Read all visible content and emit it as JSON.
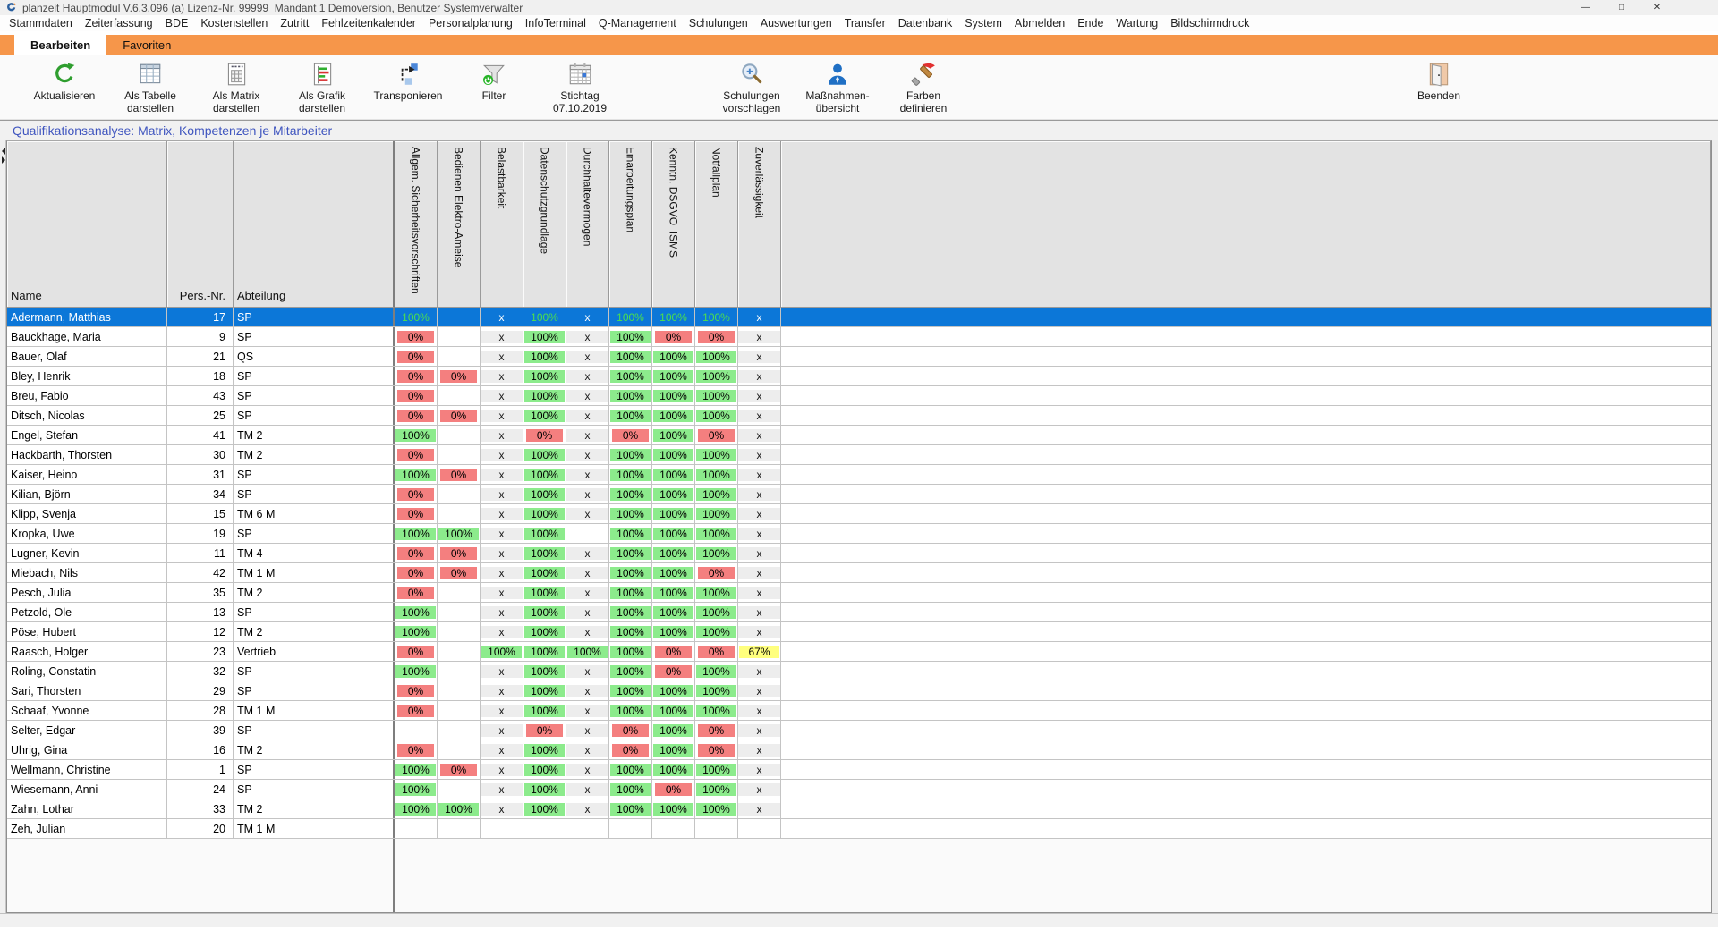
{
  "window": {
    "title": "planzeit Hauptmodul V.6.3.096 (a) Lizenz-Nr. 99999  Mandant 1 Demoversion, Benutzer Systemverwalter",
    "controls": [
      {
        "name": "minimize",
        "glyph": "—"
      },
      {
        "name": "maximize",
        "glyph": "□"
      },
      {
        "name": "close",
        "glyph": "✕"
      }
    ]
  },
  "menu": {
    "items": [
      "Stammdaten",
      "Zeiterfassung",
      "BDE",
      "Kostenstellen",
      "Zutritt",
      "Fehlzeitenkalender",
      "Personalplanung",
      "InfoTerminal",
      "Q-Management",
      "Schulungen",
      "Auswertungen",
      "Transfer",
      "Datenbank",
      "System",
      "Abmelden",
      "Ende",
      "Wartung",
      "Bildschirmdruck"
    ]
  },
  "tabs": [
    {
      "label": "Bearbeiten",
      "active": true
    },
    {
      "label": "Favoriten",
      "active": false
    }
  ],
  "toolbar": {
    "items": [
      {
        "name": "refresh",
        "icon": "refresh-icon",
        "lines": [
          "Aktualisieren"
        ]
      },
      {
        "name": "as-table",
        "icon": "table-icon",
        "lines": [
          "Als Tabelle",
          "darstellen"
        ]
      },
      {
        "name": "as-matrix",
        "icon": "matrix-icon",
        "lines": [
          "Als Matrix",
          "darstellen"
        ]
      },
      {
        "name": "as-chart",
        "icon": "chart-icon",
        "lines": [
          "Als Grafik",
          "darstellen"
        ]
      },
      {
        "name": "transpose",
        "icon": "transpose-icon",
        "lines": [
          "Transponieren"
        ]
      },
      {
        "name": "filter",
        "icon": "filter-icon",
        "lines": [
          "Filter"
        ]
      },
      {
        "name": "deadline",
        "icon": "calendar-icon",
        "lines": [
          "Stichtag",
          "07.10.2019"
        ]
      },
      {
        "name": "suggest-trainings",
        "icon": "search-plus-icon",
        "lines": [
          "Schulungen",
          "vorschlagen"
        ]
      },
      {
        "name": "measures-overview",
        "icon": "person-icon",
        "lines": [
          "Maßnahmen-",
          "übersicht"
        ]
      },
      {
        "name": "define-colors",
        "icon": "brush-icon",
        "lines": [
          "Farben",
          "definieren"
        ]
      },
      {
        "name": "quit",
        "icon": "door-icon",
        "lines": [
          "Beenden"
        ]
      }
    ]
  },
  "panel_title": "Qualifikationsanalyse: Matrix, Kompetenzen je Mitarbeiter",
  "table": {
    "fixed_headers": [
      "Name",
      "Pers.-Nr.",
      "Abteilung"
    ],
    "skill_headers": [
      "Allgem. Sicherheitsvorschriften",
      "Bedienen Elektro-Ameise",
      "Belastbarkeit",
      "Datenschutzgrundlage",
      "Durchhaltevermögen",
      "Einarbeitungsplan",
      "Kenntn. DSGVO_ISMS",
      "Notfallplan",
      "Zuverlässigkeit"
    ],
    "rows": [
      {
        "name": "Adermann, Matthias",
        "nr": "17",
        "abt": "SP",
        "selected": true,
        "cells": [
          "100%",
          "",
          "x",
          "100%",
          "x",
          "100%",
          "100%",
          "100%",
          "x"
        ]
      },
      {
        "name": "Bauckhage, Maria",
        "nr": "9",
        "abt": "SP",
        "selected": false,
        "cells": [
          "0%",
          "",
          "x",
          "100%",
          "x",
          "100%",
          "0%",
          "0%",
          "x"
        ]
      },
      {
        "name": "Bauer, Olaf",
        "nr": "21",
        "abt": "QS",
        "selected": false,
        "cells": [
          "0%",
          "",
          "x",
          "100%",
          "x",
          "100%",
          "100%",
          "100%",
          "x"
        ]
      },
      {
        "name": "Bley, Henrik",
        "nr": "18",
        "abt": "SP",
        "selected": false,
        "cells": [
          "0%",
          "0%",
          "x",
          "100%",
          "x",
          "100%",
          "100%",
          "100%",
          "x"
        ]
      },
      {
        "name": "Breu, Fabio",
        "nr": "43",
        "abt": "SP",
        "selected": false,
        "cells": [
          "0%",
          "",
          "x",
          "100%",
          "x",
          "100%",
          "100%",
          "100%",
          "x"
        ]
      },
      {
        "name": "Ditsch, Nicolas",
        "nr": "25",
        "abt": "SP",
        "selected": false,
        "cells": [
          "0%",
          "0%",
          "x",
          "100%",
          "x",
          "100%",
          "100%",
          "100%",
          "x"
        ]
      },
      {
        "name": "Engel, Stefan",
        "nr": "41",
        "abt": "TM 2",
        "selected": false,
        "cells": [
          "100%",
          "",
          "x",
          "0%",
          "x",
          "0%",
          "100%",
          "0%",
          "x"
        ]
      },
      {
        "name": "Hackbarth, Thorsten",
        "nr": "30",
        "abt": "TM 2",
        "selected": false,
        "cells": [
          "0%",
          "",
          "x",
          "100%",
          "x",
          "100%",
          "100%",
          "100%",
          "x"
        ]
      },
      {
        "name": "Kaiser, Heino",
        "nr": "31",
        "abt": "SP",
        "selected": false,
        "cells": [
          "100%",
          "0%",
          "x",
          "100%",
          "x",
          "100%",
          "100%",
          "100%",
          "x"
        ]
      },
      {
        "name": "Kilian, Björn",
        "nr": "34",
        "abt": "SP",
        "selected": false,
        "cells": [
          "0%",
          "",
          "x",
          "100%",
          "x",
          "100%",
          "100%",
          "100%",
          "x"
        ]
      },
      {
        "name": "Klipp, Svenja",
        "nr": "15",
        "abt": "TM 6 M",
        "selected": false,
        "cells": [
          "0%",
          "",
          "x",
          "100%",
          "x",
          "100%",
          "100%",
          "100%",
          "x"
        ]
      },
      {
        "name": "Kropka, Uwe",
        "nr": "19",
        "abt": "SP",
        "selected": false,
        "cells": [
          "100%",
          "100%",
          "x",
          "100%",
          "",
          "100%",
          "100%",
          "100%",
          "x"
        ]
      },
      {
        "name": "Lugner, Kevin",
        "nr": "11",
        "abt": "TM 4",
        "selected": false,
        "cells": [
          "0%",
          "0%",
          "x",
          "100%",
          "x",
          "100%",
          "100%",
          "100%",
          "x"
        ]
      },
      {
        "name": "Miebach, Nils",
        "nr": "42",
        "abt": "TM 1 M",
        "selected": false,
        "cells": [
          "0%",
          "0%",
          "x",
          "100%",
          "x",
          "100%",
          "100%",
          "0%",
          "x"
        ]
      },
      {
        "name": "Pesch, Julia",
        "nr": "35",
        "abt": "TM 2",
        "selected": false,
        "cells": [
          "0%",
          "",
          "x",
          "100%",
          "x",
          "100%",
          "100%",
          "100%",
          "x"
        ]
      },
      {
        "name": "Petzold, Ole",
        "nr": "13",
        "abt": "SP",
        "selected": false,
        "cells": [
          "100%",
          "",
          "x",
          "100%",
          "x",
          "100%",
          "100%",
          "100%",
          "x"
        ]
      },
      {
        "name": "Pöse, Hubert",
        "nr": "12",
        "abt": "TM 2",
        "selected": false,
        "cells": [
          "100%",
          "",
          "x",
          "100%",
          "x",
          "100%",
          "100%",
          "100%",
          "x"
        ]
      },
      {
        "name": "Raasch, Holger",
        "nr": "23",
        "abt": "Vertrieb",
        "selected": false,
        "cells": [
          "0%",
          "",
          "100%",
          "100%",
          "100%",
          "100%",
          "0%",
          "0%",
          "67%"
        ]
      },
      {
        "name": "Roling, Constatin",
        "nr": "32",
        "abt": "SP",
        "selected": false,
        "cells": [
          "100%",
          "",
          "x",
          "100%",
          "x",
          "100%",
          "0%",
          "100%",
          "x"
        ]
      },
      {
        "name": "Sari, Thorsten",
        "nr": "29",
        "abt": "SP",
        "selected": false,
        "cells": [
          "0%",
          "",
          "x",
          "100%",
          "x",
          "100%",
          "100%",
          "100%",
          "x"
        ]
      },
      {
        "name": "Schaaf, Yvonne",
        "nr": "28",
        "abt": "TM 1 M",
        "selected": false,
        "cells": [
          "0%",
          "",
          "x",
          "100%",
          "x",
          "100%",
          "100%",
          "100%",
          "x"
        ]
      },
      {
        "name": "Selter, Edgar",
        "nr": "39",
        "abt": "SP",
        "selected": false,
        "cells": [
          "",
          "",
          "x",
          "0%",
          "x",
          "0%",
          "100%",
          "0%",
          "x"
        ]
      },
      {
        "name": "Uhrig, Gina",
        "nr": "16",
        "abt": "TM 2",
        "selected": false,
        "cells": [
          "0%",
          "",
          "x",
          "100%",
          "x",
          "0%",
          "100%",
          "0%",
          "x"
        ]
      },
      {
        "name": "Wellmann, Christine",
        "nr": "1",
        "abt": "SP",
        "selected": false,
        "cells": [
          "100%",
          "0%",
          "x",
          "100%",
          "x",
          "100%",
          "100%",
          "100%",
          "x"
        ]
      },
      {
        "name": "Wiesemann, Anni",
        "nr": "24",
        "abt": "SP",
        "selected": false,
        "cells": [
          "100%",
          "",
          "x",
          "100%",
          "x",
          "100%",
          "0%",
          "100%",
          "x"
        ]
      },
      {
        "name": "Zahn, Lothar",
        "nr": "33",
        "abt": "TM 2",
        "selected": false,
        "cells": [
          "100%",
          "100%",
          "x",
          "100%",
          "x",
          "100%",
          "100%",
          "100%",
          "x"
        ]
      },
      {
        "name": "Zeh, Julian",
        "nr": "20",
        "abt": "TM 1 M",
        "selected": false,
        "cells": [
          "",
          "",
          "",
          "",
          "",
          "",
          "",
          "",
          ""
        ]
      }
    ]
  },
  "colors": {
    "tab_orange": "#F6964A",
    "selected_row": "#0C77D8",
    "cell_green": "#8CEB8C",
    "cell_red": "#F47F7F",
    "cell_yellow": "#FFFF7D",
    "cell_gray": "#EDEDED",
    "selected_value_text": "#4CE04C",
    "panel_title_text": "#3F55BF"
  }
}
